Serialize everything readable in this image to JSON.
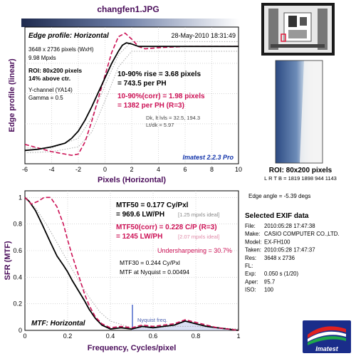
{
  "title": "changfen1.JPG",
  "edge_panel": {
    "heading": "Edge profile: Horizontal",
    "date": "28-May-2010 18:31:49",
    "size_line": "3648 x 2736 pixels (WxH)",
    "mpxls": "9.98 Mpxls",
    "roi_line": "ROI: 80x200 pixels",
    "above_line": "14% above ctr.",
    "channel_line": "Y-channel (YA14)",
    "gamma_line": "Gamma = 0.5",
    "rise_line1": "10-90% rise = 3.68 pixels",
    "rise_line2": "= 743.5 per PH",
    "corr_line1": "10-90%(corr) = 1.98 pixels",
    "corr_line2": "= 1382 per PH  (R=3)",
    "dk_line": "Dk, lt lvls = 32.5, 194.3",
    "ltdk_line": "Lt/dk = 5.97",
    "version": "Imatest 2.2.3 Pro"
  },
  "mtf_panel": {
    "heading": "MTF: Horizontal",
    "mtf50_line1": "MTF50 = 0.177 Cy/Pxl",
    "mtf50_line2": "= 969.6 LW/PH",
    "mtf50_ideal": "[1.25 mpxls ideal]",
    "mtf50c_line1": "MTF50(corr) = 0.228 C/P  (R=3)",
    "mtf50c_line2": "= 1245 LW/PH",
    "mtf50c_ideal": "[2.07 mpxls ideal]",
    "undersharp": "Undersharpening = 30.7%",
    "mtf30": "MTF30 = 0.244 Cy/Pxl",
    "nyq_mtf": "MTF at Nyquist = 0.00494",
    "nyquist_label": "Nyquist freq."
  },
  "roi_caption": {
    "line1": "ROI: 80x200 pixels",
    "line2": "L R T B = 1819 1898  944 1143"
  },
  "edge_angle": "Edge angle = -5.39 degs",
  "exif": {
    "title": "Selected EXIF data",
    "rows": [
      {
        "k": "File:",
        "v": "2010:05:28 17:47:38"
      },
      {
        "k": "Make:",
        "v": "CASIO COMPUTER CO.,LTD."
      },
      {
        "k": "Model:",
        "v": "EX-FH100"
      },
      {
        "k": "Taken:",
        "v": "2010:05:28 17:47:37"
      },
      {
        "k": "Res:",
        "v": "3648 x 2736"
      },
      {
        "k": "FL:",
        "v": ""
      },
      {
        "k": "Exp:",
        "v": "0.050 s  (1/20)"
      },
      {
        "k": "Aper:",
        "v": "f/5.7"
      },
      {
        "k": "ISO:",
        "v": "100"
      }
    ]
  },
  "logo_text": "Imatest",
  "colors": {
    "black_curve": "#000000",
    "red_curve": "#cc1155",
    "dotted": "#aaaaaa",
    "label": "#4a0d5a",
    "nyquist": "#7a8fd8"
  },
  "chart_data": [
    {
      "type": "line",
      "title": "Edge profile: Horizontal",
      "xlabel": "Pixels (Horizontal)",
      "ylabel": "Edge profile (linear)",
      "xlim": [
        -6,
        10
      ],
      "x_ticks": [
        -6,
        -4,
        -2,
        0,
        2,
        4,
        6,
        8,
        10
      ],
      "grid": true,
      "series": [
        {
          "style": "black-solid",
          "x": [
            -6,
            -5,
            -4,
            -3,
            -2.5,
            -2,
            -1.5,
            -1,
            -0.5,
            0,
            0.5,
            1,
            1.3,
            1.6,
            2,
            2.5,
            3,
            4,
            6,
            8,
            10
          ],
          "y": [
            0.03,
            0.04,
            0.06,
            0.09,
            0.13,
            0.19,
            0.28,
            0.39,
            0.51,
            0.63,
            0.75,
            0.85,
            0.9,
            0.92,
            0.91,
            0.89,
            0.89,
            0.89,
            0.89,
            0.89,
            0.89
          ]
        },
        {
          "style": "red-dashed",
          "x": [
            -6,
            -5,
            -4,
            -3,
            -2.5,
            -2,
            -1.5,
            -1,
            -0.5,
            0,
            0.5,
            1,
            1.5,
            2,
            2.5,
            3,
            4,
            6,
            8,
            10
          ],
          "y": [
            0.08,
            0.05,
            0.02,
            0.0,
            -0.01,
            0.0,
            0.1,
            0.27,
            0.46,
            0.65,
            0.84,
            0.97,
            1.0,
            0.95,
            0.89,
            0.87,
            0.88,
            0.89,
            0.89,
            0.89
          ]
        },
        {
          "style": "gray-dotted",
          "x": [
            -6,
            -4,
            -2,
            -1,
            0,
            1,
            2,
            4,
            6,
            8,
            10
          ],
          "y": [
            0.05,
            0.05,
            0.13,
            0.3,
            0.57,
            0.82,
            0.93,
            0.93,
            0.93,
            0.93,
            0.93
          ]
        },
        {
          "style": "gray-dotted",
          "x": [
            -6,
            -4,
            -2,
            -1,
            0,
            1,
            2,
            4,
            6,
            8,
            10
          ],
          "y": [
            0.01,
            0.02,
            0.06,
            0.18,
            0.44,
            0.72,
            0.85,
            0.85,
            0.85,
            0.85,
            0.85
          ]
        }
      ]
    },
    {
      "type": "line",
      "title": "MTF: Horizontal",
      "xlabel": "Frequency, Cycles/pixel",
      "ylabel": "SFR (MTF)",
      "xlim": [
        0,
        1
      ],
      "ylim": [
        0,
        1.05
      ],
      "x_ticks": [
        0,
        0.2,
        0.4,
        0.6,
        0.8,
        1
      ],
      "y_ticks": [
        0,
        0.2,
        0.4,
        0.6,
        0.8,
        1
      ],
      "grid": true,
      "nyquist": 0.5,
      "series": [
        {
          "style": "black-solid",
          "x": [
            0,
            0.02,
            0.05,
            0.08,
            0.1,
            0.12,
            0.15,
            0.18,
            0.2,
            0.22,
            0.25,
            0.28,
            0.3,
            0.33,
            0.36,
            0.4,
            0.45,
            0.5,
            0.55,
            0.6,
            0.65,
            0.7,
            0.75,
            0.8,
            0.85,
            0.9,
            0.95,
            1
          ],
          "y": [
            1.0,
            0.97,
            0.9,
            0.8,
            0.73,
            0.66,
            0.56,
            0.49,
            0.44,
            0.38,
            0.3,
            0.22,
            0.16,
            0.09,
            0.04,
            0.01,
            0.02,
            0.01,
            0.03,
            0.02,
            0.03,
            0.04,
            0.07,
            0.05,
            0.03,
            0.02,
            0.01,
            0.0
          ]
        },
        {
          "style": "red-dashed",
          "x": [
            0,
            0.03,
            0.06,
            0.09,
            0.12,
            0.15,
            0.18,
            0.2,
            0.22,
            0.25,
            0.28,
            0.3,
            0.33,
            0.36,
            0.4,
            0.45,
            0.5,
            0.55,
            0.6,
            0.65,
            0.7,
            0.75,
            0.8,
            0.85,
            0.9,
            0.95,
            1
          ],
          "y": [
            1.0,
            0.95,
            0.97,
            1.0,
            1.0,
            0.93,
            0.8,
            0.68,
            0.57,
            0.42,
            0.27,
            0.19,
            0.1,
            0.05,
            0.02,
            0.03,
            0.02,
            0.04,
            0.03,
            0.04,
            0.05,
            0.08,
            0.06,
            0.04,
            0.02,
            0.01,
            0.0
          ]
        },
        {
          "style": "gray-dotted",
          "x": [
            0,
            0.05,
            0.1,
            0.15,
            0.2,
            0.25,
            0.3,
            0.35,
            0.4,
            0.5,
            0.6,
            0.7,
            0.8,
            0.9,
            1
          ],
          "y": [
            1.0,
            0.92,
            0.8,
            0.66,
            0.52,
            0.38,
            0.25,
            0.14,
            0.07,
            0.02,
            0.02,
            0.03,
            0.03,
            0.02,
            0.01
          ]
        }
      ]
    }
  ]
}
